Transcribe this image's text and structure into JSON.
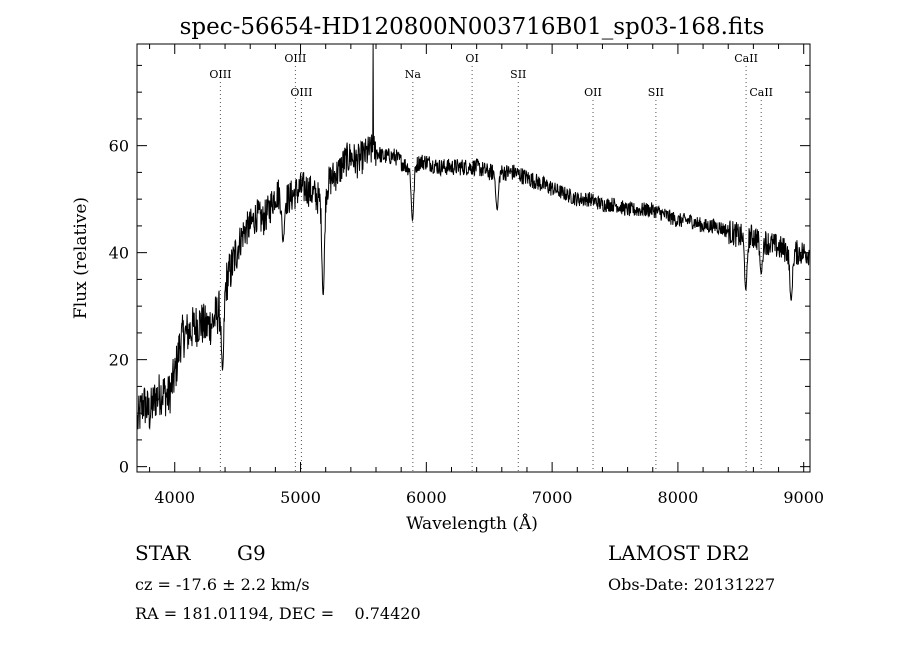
{
  "chart_data": {
    "type": "line",
    "title": "spec-56654-HD120800N003716B01_sp03-168.fits",
    "xlabel": "Wavelength (Å)",
    "ylabel": "Flux (relative)",
    "xlim": [
      3700,
      9050
    ],
    "ylim": [
      -1,
      79
    ],
    "xticks": [
      4000,
      5000,
      6000,
      7000,
      8000,
      9000
    ],
    "yticks": [
      0,
      20,
      40,
      60
    ],
    "grid": false,
    "series": [
      {
        "x": [
          3700,
          3750,
          3800,
          3850,
          3900,
          3950,
          4000,
          4050,
          4100,
          4150,
          4200,
          4250,
          4300,
          4350,
          4400,
          4450,
          4500,
          4550,
          4600,
          4650,
          4700,
          4750,
          4800,
          4850,
          4900,
          4950,
          5000,
          5050,
          5100,
          5150,
          5200,
          5250,
          5300,
          5350,
          5400,
          5450,
          5500,
          5550,
          5600,
          5650,
          5700,
          5750,
          5800,
          5850,
          5900,
          5950,
          6000,
          6100,
          6200,
          6300,
          6400,
          6500,
          6600,
          6700,
          6800,
          6900,
          7000,
          7100,
          7200,
          7300,
          7400,
          7500,
          7600,
          7700,
          7800,
          7900,
          8000,
          8100,
          8200,
          8300,
          8400,
          8500,
          8600,
          8700,
          8800,
          8900,
          9000
        ],
        "y": [
          8,
          12,
          10,
          13,
          14,
          13,
          17,
          24,
          25,
          26,
          27,
          26,
          27,
          29,
          34,
          37,
          41,
          44,
          45,
          47,
          46,
          48,
          51,
          51,
          50,
          51,
          52,
          52,
          51,
          50,
          52,
          54,
          55,
          57,
          58,
          57,
          58,
          59,
          59,
          58,
          58,
          58,
          57,
          56,
          56,
          57,
          57,
          56,
          56,
          56,
          56,
          55,
          55,
          55,
          54,
          53,
          52,
          51,
          50,
          50,
          49,
          49,
          48,
          48,
          48,
          47,
          46,
          46,
          45,
          45,
          44,
          43,
          43,
          42,
          41,
          40,
          40
        ]
      }
    ],
    "dips": [
      {
        "x": 4380,
        "y": 18
      },
      {
        "x": 4861,
        "y": 42
      },
      {
        "x": 5180,
        "y": 32
      },
      {
        "x": 5890,
        "y": 46
      },
      {
        "x": 6563,
        "y": 48
      },
      {
        "x": 8540,
        "y": 33
      },
      {
        "x": 8662,
        "y": 36
      },
      {
        "x": 8900,
        "y": 31
      }
    ],
    "spikes": [
      {
        "x": 5577,
        "y": 79
      }
    ],
    "lines": [
      {
        "label": "OIII",
        "x": 4363,
        "row": 2
      },
      {
        "label": "OIII",
        "x": 4959,
        "row": 1
      },
      {
        "label": "OIII",
        "x": 5007,
        "row": 3
      },
      {
        "label": "Na",
        "x": 5893,
        "row": 2
      },
      {
        "label": "OI",
        "x": 6364,
        "row": 1
      },
      {
        "label": "SII",
        "x": 6731,
        "row": 2
      },
      {
        "label": "OII",
        "x": 7325,
        "row": 3
      },
      {
        "label": "SII",
        "x": 7825,
        "row": 3
      },
      {
        "label": "CaII",
        "x": 8542,
        "row": 1
      },
      {
        "label": "CaII",
        "x": 8662,
        "row": 3
      }
    ]
  },
  "info": {
    "class_label": "STAR",
    "subclass": "G9",
    "survey": "LAMOST DR2",
    "cz": "cz = -17.6 ± 2.2 km/s",
    "obs_date": "Obs-Date: 20131227",
    "coords": "RA = 181.01194, DEC =    0.74420"
  }
}
